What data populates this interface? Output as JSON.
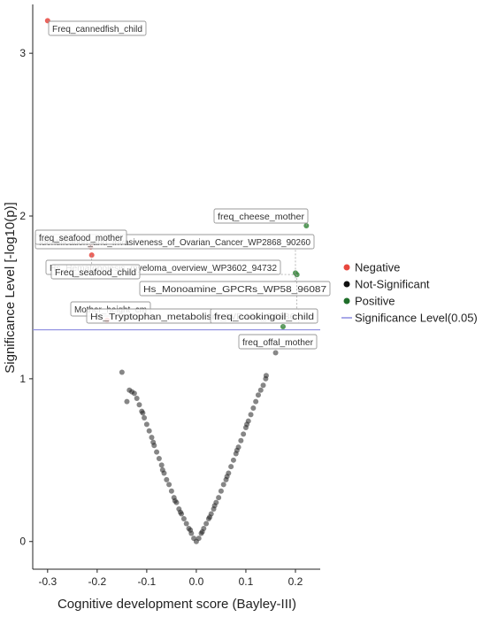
{
  "chart_data": {
    "type": "scatter",
    "title": "",
    "xlabel": "Cognitive development score (Bayley-III)",
    "ylabel": "Significance Level [-log10(p)]",
    "xlim": [
      -0.33,
      0.25
    ],
    "ylim": [
      -0.17,
      3.3
    ],
    "x_ticks": [
      "-0.3",
      "-0.2",
      "-0.1",
      "0.0",
      "0.1",
      "0.2"
    ],
    "y_ticks": [
      "0",
      "1",
      "2",
      "3"
    ],
    "threshold": {
      "y": 1.301,
      "label": "Significance Level(0.05)",
      "color": "#8c8ce0"
    },
    "legend": {
      "position": "right",
      "entries": [
        {
          "name": "Negative",
          "color": "#e8473e"
        },
        {
          "name": "Not-Significant",
          "color": "#111111"
        },
        {
          "name": "Positive",
          "color": "#1f6e2a"
        },
        {
          "name": "Significance Level(0.05)",
          "color": "#8c8ce0",
          "kind": "line"
        }
      ]
    },
    "series": [
      {
        "name": "Negative",
        "color": "#e8473e",
        "points": [
          {
            "x": -0.3,
            "y": 3.2
          },
          {
            "x": -0.213,
            "y": 1.81
          },
          {
            "x": -0.211,
            "y": 1.76
          },
          {
            "x": -0.18,
            "y": 1.36
          }
        ]
      },
      {
        "name": "Positive",
        "color": "#3a8a3e",
        "points": [
          {
            "x": 0.222,
            "y": 1.94
          },
          {
            "x": 0.2,
            "y": 1.65
          },
          {
            "x": 0.203,
            "y": 1.64
          },
          {
            "x": 0.175,
            "y": 1.32
          }
        ]
      },
      {
        "name": "Not-Significant",
        "color": "#222222",
        "points": [
          {
            "x": 0.0,
            "y": 0.0
          },
          {
            "x": 0.005,
            "y": 0.02
          },
          {
            "x": -0.005,
            "y": 0.02
          },
          {
            "x": 0.01,
            "y": 0.05
          },
          {
            "x": -0.01,
            "y": 0.05
          },
          {
            "x": 0.015,
            "y": 0.08
          },
          {
            "x": -0.015,
            "y": 0.08
          },
          {
            "x": 0.02,
            "y": 0.11
          },
          {
            "x": -0.02,
            "y": 0.11
          },
          {
            "x": 0.025,
            "y": 0.14
          },
          {
            "x": -0.025,
            "y": 0.14
          },
          {
            "x": 0.03,
            "y": 0.17
          },
          {
            "x": -0.03,
            "y": 0.17
          },
          {
            "x": 0.035,
            "y": 0.2
          },
          {
            "x": -0.035,
            "y": 0.2
          },
          {
            "x": 0.04,
            "y": 0.24
          },
          {
            "x": -0.04,
            "y": 0.24
          },
          {
            "x": 0.045,
            "y": 0.27
          },
          {
            "x": -0.045,
            "y": 0.27
          },
          {
            "x": 0.05,
            "y": 0.31
          },
          {
            "x": -0.05,
            "y": 0.31
          },
          {
            "x": 0.055,
            "y": 0.35
          },
          {
            "x": -0.055,
            "y": 0.35
          },
          {
            "x": 0.06,
            "y": 0.38
          },
          {
            "x": -0.06,
            "y": 0.38
          },
          {
            "x": 0.065,
            "y": 0.42
          },
          {
            "x": -0.065,
            "y": 0.42
          },
          {
            "x": 0.07,
            "y": 0.46
          },
          {
            "x": -0.07,
            "y": 0.47
          },
          {
            "x": 0.075,
            "y": 0.5
          },
          {
            "x": -0.075,
            "y": 0.51
          },
          {
            "x": 0.08,
            "y": 0.54
          },
          {
            "x": -0.08,
            "y": 0.55
          },
          {
            "x": 0.085,
            "y": 0.58
          },
          {
            "x": -0.085,
            "y": 0.59
          },
          {
            "x": 0.09,
            "y": 0.62
          },
          {
            "x": -0.09,
            "y": 0.64
          },
          {
            "x": 0.095,
            "y": 0.66
          },
          {
            "x": -0.095,
            "y": 0.68
          },
          {
            "x": 0.1,
            "y": 0.7
          },
          {
            "x": -0.1,
            "y": 0.72
          },
          {
            "x": 0.105,
            "y": 0.74
          },
          {
            "x": -0.105,
            "y": 0.76
          },
          {
            "x": 0.11,
            "y": 0.78
          },
          {
            "x": -0.11,
            "y": 0.8
          },
          {
            "x": 0.115,
            "y": 0.82
          },
          {
            "x": -0.115,
            "y": 0.84
          },
          {
            "x": 0.12,
            "y": 0.86
          },
          {
            "x": -0.12,
            "y": 0.88
          },
          {
            "x": 0.125,
            "y": 0.9
          },
          {
            "x": -0.125,
            "y": 0.91
          },
          {
            "x": 0.13,
            "y": 0.93
          },
          {
            "x": -0.13,
            "y": 0.92
          },
          {
            "x": 0.135,
            "y": 0.96
          },
          {
            "x": -0.135,
            "y": 0.93
          },
          {
            "x": 0.14,
            "y": 1.0
          },
          {
            "x": -0.14,
            "y": 0.86
          },
          {
            "x": 0.141,
            "y": 1.02
          },
          {
            "x": -0.15,
            "y": 1.04
          },
          {
            "x": 0.16,
            "y": 1.16
          },
          {
            "x": 0.037,
            "y": 0.22
          },
          {
            "x": -0.043,
            "y": 0.25
          },
          {
            "x": 0.062,
            "y": 0.4
          },
          {
            "x": -0.068,
            "y": 0.44
          },
          {
            "x": 0.082,
            "y": 0.56
          },
          {
            "x": -0.087,
            "y": 0.61
          },
          {
            "x": 0.102,
            "y": 0.72
          },
          {
            "x": -0.108,
            "y": 0.79
          },
          {
            "x": 0.012,
            "y": 0.06
          },
          {
            "x": -0.012,
            "y": 0.07
          },
          {
            "x": 0.027,
            "y": 0.15
          },
          {
            "x": -0.032,
            "y": 0.18
          }
        ]
      }
    ],
    "annotations": [
      {
        "text": "Freq_cannedfish_child",
        "x": -0.3,
        "y": 3.2
      },
      {
        "text": "freq_cheese_mother",
        "x": 0.222,
        "y": 1.94
      },
      {
        "text": "Identification_and_Invasiveness_of_Ovarian_Cancer_WP2868_90260",
        "x": 0.2,
        "y": 1.65
      },
      {
        "text": "freq_seafood_mother",
        "x": -0.213,
        "y": 1.81
      },
      {
        "text": "Hs_Hematopoiesis_myeloma_overview_WP3602_94732",
        "x": 0.203,
        "y": 1.64
      },
      {
        "text": "Freq_seafood_child",
        "x": -0.211,
        "y": 1.76
      },
      {
        "text": "Hs_Monoamine_GPCRs_WP58_96087",
        "x": 0.2,
        "y": 1.65
      },
      {
        "text": "Mother_height_cm",
        "x": -0.18,
        "y": 1.36
      },
      {
        "text": "Hs_Tryptophan_metabolism_WP465_94086",
        "x": 0.203,
        "y": 1.64
      },
      {
        "text": "freq_cookingoil_child",
        "x": 0.175,
        "y": 1.32
      },
      {
        "text": "freq_offal_mother",
        "x": 0.16,
        "y": 1.16
      }
    ]
  }
}
